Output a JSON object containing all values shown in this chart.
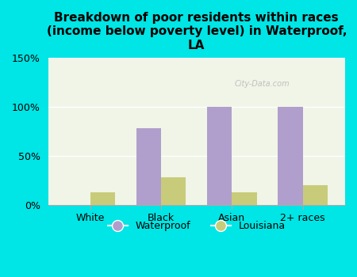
{
  "title": "Breakdown of poor residents within races\n(income below poverty level) in Waterproof,\nLA",
  "categories": [
    "White",
    "Black",
    "Asian",
    "2+ races"
  ],
  "waterproof": [
    0,
    78,
    100,
    100
  ],
  "louisiana": [
    13,
    28,
    13,
    20
  ],
  "waterproof_color": "#b09fcc",
  "louisiana_color": "#c8cc7a",
  "background_color": "#00e5e5",
  "plot_bg_color": "#f0f5e8",
  "ylim": [
    0,
    150
  ],
  "yticks": [
    0,
    50,
    100,
    150
  ],
  "ytick_labels": [
    "0%",
    "50%",
    "100%",
    "150%"
  ],
  "bar_width": 0.35,
  "title_fontsize": 11,
  "tick_fontsize": 9,
  "legend_label_waterproof": "Waterproof",
  "legend_label_louisiana": "Louisiana",
  "watermark": "City-Data.com"
}
